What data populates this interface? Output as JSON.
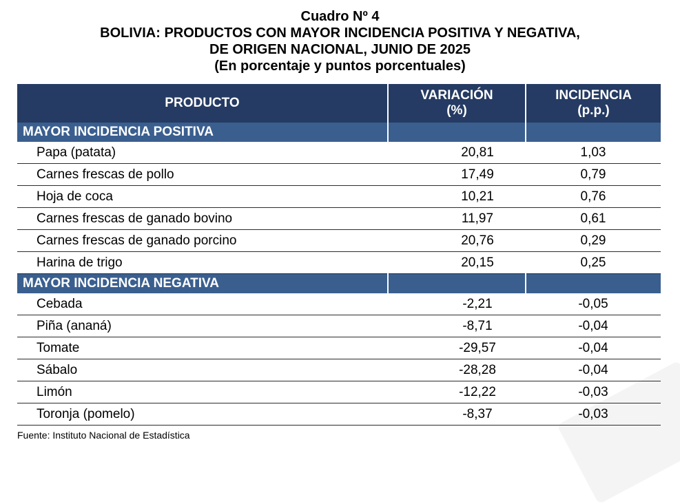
{
  "header": {
    "line1": "Cuadro Nº 4",
    "line2": "BOLIVIA: PRODUCTOS CON MAYOR INCIDENCIA POSITIVA Y NEGATIVA,",
    "line3": "DE ORIGEN NACIONAL, JUNIO DE 2025",
    "line4": "(En porcentaje y puntos porcentuales)"
  },
  "columns": {
    "product": "PRODUCTO",
    "variation_1": "VARIACIÓN",
    "variation_2": "(%)",
    "incidence_1": "INCIDENCIA",
    "incidence_2": "(p.p.)"
  },
  "positive": {
    "title": "MAYOR INCIDENCIA POSITIVA",
    "rows": [
      {
        "product": "Papa (patata)",
        "variation": "20,81",
        "incidence": "1,03"
      },
      {
        "product": "Carnes frescas de pollo",
        "variation": "17,49",
        "incidence": "0,79"
      },
      {
        "product": "Hoja de coca",
        "variation": "10,21",
        "incidence": "0,76"
      },
      {
        "product": "Carnes frescas de ganado bovino",
        "variation": "11,97",
        "incidence": "0,61"
      },
      {
        "product": "Carnes frescas de ganado porcino",
        "variation": "20,76",
        "incidence": "0,29"
      },
      {
        "product": "Harina de trigo",
        "variation": "20,15",
        "incidence": "0,25"
      }
    ]
  },
  "negative": {
    "title": "MAYOR INCIDENCIA NEGATIVA",
    "rows": [
      {
        "product": "Cebada",
        "variation": "-2,21",
        "incidence": "-0,05"
      },
      {
        "product": "Piña (ananá)",
        "variation": "-8,71",
        "incidence": "-0,04"
      },
      {
        "product": "Tomate",
        "variation": "-29,57",
        "incidence": "-0,04"
      },
      {
        "product": "Sábalo",
        "variation": "-28,28",
        "incidence": "-0,04"
      },
      {
        "product": "Limón",
        "variation": "-12,22",
        "incidence": "-0,03"
      },
      {
        "product": "Toronja (pomelo)",
        "variation": "-8,37",
        "incidence": "-0,03"
      }
    ]
  },
  "source": "Fuente: Instituto Nacional de Estadística",
  "colors": {
    "header_bg": "#253b63",
    "section_bg": "#3a5f8f"
  }
}
